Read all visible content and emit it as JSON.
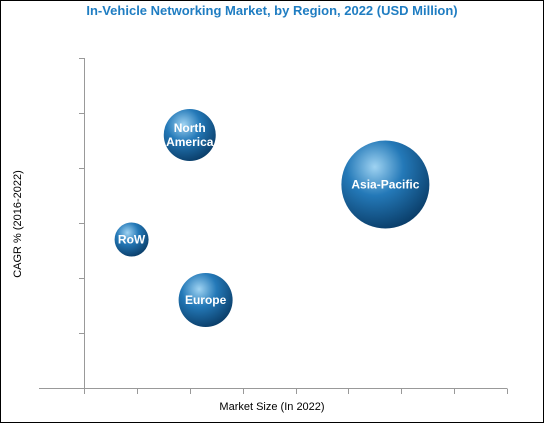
{
  "chart_data": {
    "type": "bubble",
    "title": "In-Vehicle Networking Market, by Region, 2022 (USD Million)",
    "xlabel": "Market Size (In 2022)",
    "ylabel": "CAGR % (2016-2022)",
    "xlim": [
      0,
      8
    ],
    "ylim": [
      0,
      6
    ],
    "grid": false,
    "series": [
      {
        "label": "North America",
        "label_lines": [
          "North",
          "America"
        ],
        "x": 2.0,
        "y": 4.6,
        "size": 26
      },
      {
        "label": "Asia-Pacific",
        "label_lines": [
          "Asia-Pacific"
        ],
        "x": 5.7,
        "y": 3.7,
        "size": 44
      },
      {
        "label": "RoW",
        "label_lines": [
          "RoW"
        ],
        "x": 0.9,
        "y": 2.7,
        "size": 17
      },
      {
        "label": "Europe",
        "label_lines": [
          "Europe"
        ],
        "x": 2.3,
        "y": 1.6,
        "size": 27
      }
    ]
  },
  "colors": {
    "title": "#1f7dc2",
    "axis": "#999999",
    "bubble_highlight": "#9fd3f2",
    "bubble_mid": "#2479b8",
    "bubble_dark": "#0b3f6b"
  }
}
